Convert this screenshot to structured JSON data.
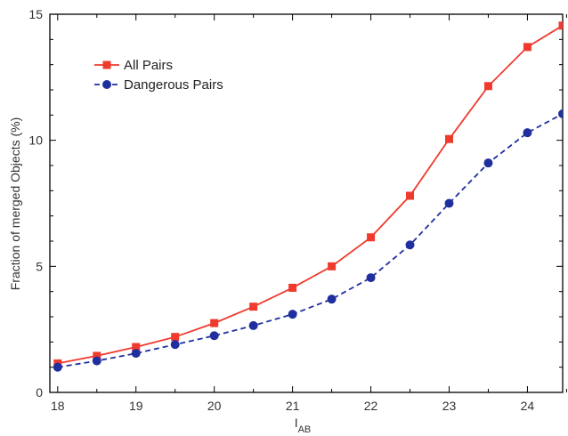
{
  "chart_data": {
    "type": "line",
    "title": "",
    "xlabel": "I",
    "xlabel_subscript": "AB",
    "ylabel": "Fraction of merged Objects (%)",
    "xlim": [
      17.9,
      24.45
    ],
    "ylim": [
      0,
      15
    ],
    "xticks": [
      18,
      19,
      20,
      21,
      22,
      23,
      24
    ],
    "yticks": [
      0,
      5,
      10,
      15
    ],
    "grid": false,
    "legend_position": "top-left",
    "series": [
      {
        "name": "All Pairs",
        "color": "#f03a2e",
        "line_style": "solid",
        "marker": "square",
        "x": [
          18,
          18.5,
          19,
          19.5,
          20,
          20.5,
          21,
          21.5,
          22,
          22.5,
          23,
          23.5,
          24,
          24.45
        ],
        "y": [
          1.15,
          1.45,
          1.8,
          2.2,
          2.75,
          3.4,
          4.15,
          5.0,
          6.15,
          7.8,
          10.05,
          12.15,
          13.7,
          14.55
        ]
      },
      {
        "name": "Dangerous Pairs",
        "color": "#1f2f9e",
        "line_style": "dashed",
        "marker": "circle",
        "x": [
          18,
          18.5,
          19,
          19.5,
          20,
          20.5,
          21,
          21.5,
          22,
          22.5,
          23,
          23.5,
          24,
          24.45
        ],
        "y": [
          1.0,
          1.25,
          1.55,
          1.9,
          2.25,
          2.65,
          3.1,
          3.7,
          4.55,
          5.85,
          7.5,
          9.1,
          10.3,
          11.05
        ]
      }
    ]
  }
}
